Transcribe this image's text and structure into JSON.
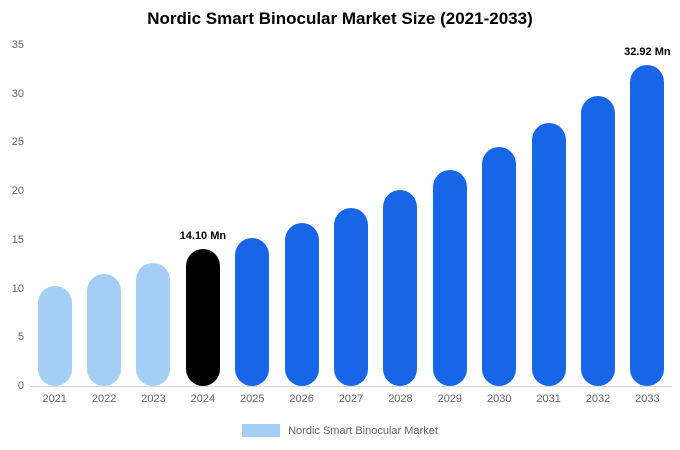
{
  "legend": {
    "label": "Nordic Smart Binocular Market",
    "swatch_color": "#A5CEF6"
  },
  "chart_data": {
    "type": "bar",
    "title": "Nordic Smart Binocular Market Size (2021-2033)",
    "categories": [
      "2021",
      "2022",
      "2023",
      "2024",
      "2025",
      "2026",
      "2027",
      "2028",
      "2029",
      "2030",
      "2031",
      "2032",
      "2033"
    ],
    "values": [
      10.3,
      11.45,
      12.6,
      14.1,
      15.2,
      16.7,
      18.3,
      20.1,
      22.2,
      24.5,
      27.0,
      29.8,
      32.92
    ],
    "unit": "Mn",
    "value_labels": {
      "2024": "14.10 Mn",
      "2033": "32.92 Mn"
    },
    "roles": [
      "historical",
      "historical",
      "historical",
      "base",
      "forecast",
      "forecast",
      "forecast",
      "forecast",
      "forecast",
      "forecast",
      "forecast",
      "forecast",
      "forecast"
    ],
    "palette": {
      "historical": "#A5CEF6",
      "base": "#000000",
      "forecast": "#1766E8"
    },
    "ylim": [
      0,
      35
    ],
    "yticks": [
      0,
      5,
      10,
      15,
      20,
      25,
      30,
      35
    ],
    "xlabel": "",
    "ylabel": "",
    "grid": false,
    "legend_position": "bottom"
  }
}
